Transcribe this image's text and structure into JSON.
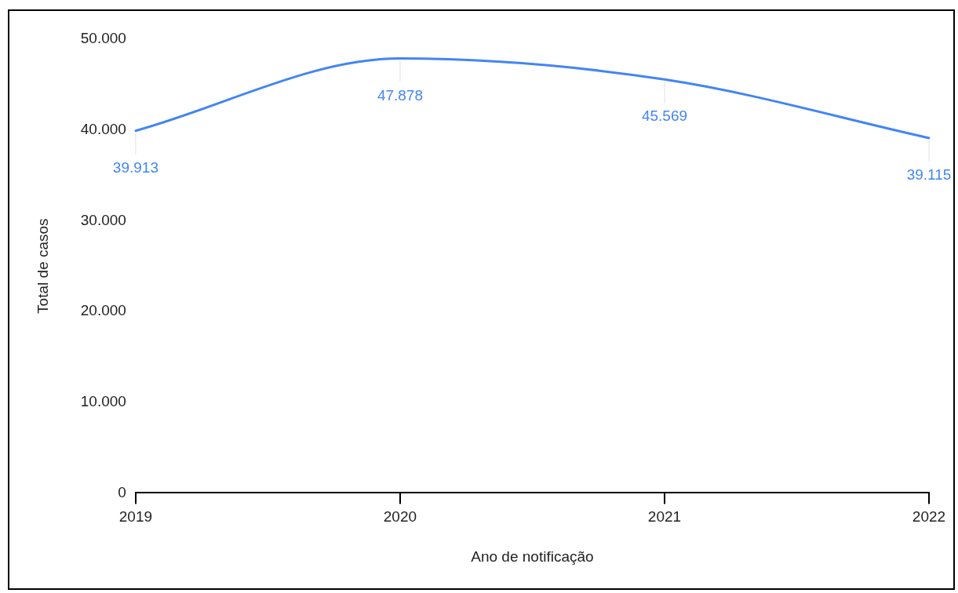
{
  "chart_data": {
    "type": "line",
    "xlabel": "Ano de notificação",
    "ylabel": "Total de casos",
    "categories": [
      "2019",
      "2020",
      "2021",
      "2022"
    ],
    "series": [
      {
        "color": "#4285f4",
        "values": [
          39913,
          47878,
          45569,
          39115
        ],
        "value_labels": [
          "39.913",
          "47.878",
          "45.569",
          "39.115"
        ]
      }
    ],
    "ylim": [
      0,
      50000
    ],
    "yticks": [
      {
        "value": 0,
        "label": "0"
      },
      {
        "value": 10000,
        "label": "10.000"
      },
      {
        "value": 20000,
        "label": "20.000"
      },
      {
        "value": 30000,
        "label": "30.000"
      },
      {
        "value": 40000,
        "label": "40.000"
      },
      {
        "value": 50000,
        "label": "50.000"
      }
    ],
    "grid": false,
    "legend": false,
    "marker": "none",
    "line_style": "solid"
  }
}
